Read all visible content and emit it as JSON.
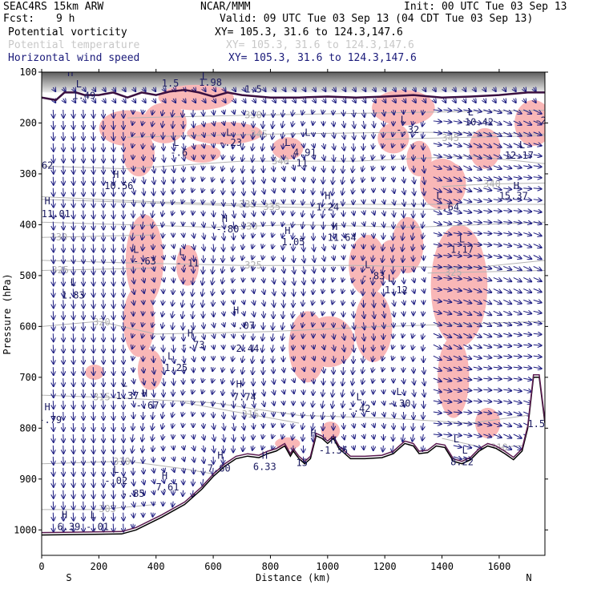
{
  "header": {
    "model": "SEAC4RS 15km ARW",
    "org": "NCAR/MMM",
    "init": "Init: 00 UTC Tue 03 Sep 13",
    "fcst_label": "Fcst:",
    "fcst_value": "9 h",
    "valid": "Valid: 09 UTC Tue 03 Sep 13 (04 CDT Tue 03 Sep 13)"
  },
  "legend": [
    {
      "name": "Potential vorticity",
      "xy": "XY= 105.3, 31.6 to 124.3,147.6",
      "color": "#000000"
    },
    {
      "name": "Potential temperature",
      "xy": "XY= 105.3, 31.6 to 124.3,147.6",
      "color": "#c8c8c8"
    },
    {
      "name": "Horizontal wind speed",
      "xy": "XY= 105.3, 31.6 to 124.3,147.6",
      "color": "#1a1a7a"
    }
  ],
  "chart_data": {
    "type": "cross-section",
    "xlabel": "Distance (km)",
    "ylabel": "Pressure (hPa)",
    "xlim": [
      0,
      1760
    ],
    "ylim": [
      1050,
      100
    ],
    "x_ticks": [
      0,
      200,
      400,
      600,
      800,
      1000,
      1200,
      1400,
      1600
    ],
    "y_ticks": [
      100,
      200,
      300,
      400,
      500,
      600,
      700,
      800,
      900,
      1000
    ],
    "end_labels": {
      "left": "S",
      "right": "N"
    },
    "terrain": [
      [
        0,
        1010
      ],
      [
        280,
        1008
      ],
      [
        330,
        1000
      ],
      [
        420,
        975
      ],
      [
        500,
        950
      ],
      [
        560,
        920
      ],
      [
        600,
        895
      ],
      [
        640,
        875
      ],
      [
        680,
        860
      ],
      [
        720,
        855
      ],
      [
        760,
        858
      ],
      [
        790,
        850
      ],
      [
        820,
        845
      ],
      [
        850,
        835
      ],
      [
        870,
        855
      ],
      [
        880,
        845
      ],
      [
        900,
        860
      ],
      [
        920,
        870
      ],
      [
        940,
        860
      ],
      [
        960,
        815
      ],
      [
        980,
        820
      ],
      [
        1000,
        830
      ],
      [
        1020,
        820
      ],
      [
        1040,
        840
      ],
      [
        1080,
        860
      ],
      [
        1130,
        860
      ],
      [
        1190,
        858
      ],
      [
        1230,
        850
      ],
      [
        1250,
        840
      ],
      [
        1270,
        830
      ],
      [
        1300,
        835
      ],
      [
        1320,
        850
      ],
      [
        1350,
        848
      ],
      [
        1380,
        835
      ],
      [
        1410,
        838
      ],
      [
        1440,
        865
      ],
      [
        1470,
        870
      ],
      [
        1500,
        862
      ],
      [
        1530,
        845
      ],
      [
        1560,
        835
      ],
      [
        1590,
        840
      ],
      [
        1620,
        850
      ],
      [
        1650,
        862
      ],
      [
        1680,
        845
      ],
      [
        1700,
        800
      ],
      [
        1720,
        700
      ],
      [
        1740,
        700
      ],
      [
        1760,
        790
      ]
    ],
    "isentropes": [
      {
        "value": "350",
        "pts": [
          [
            300,
            190
          ],
          [
            700,
            185
          ],
          [
            1200,
            180
          ],
          [
            1760,
            175
          ]
        ],
        "label_x": 740
      },
      {
        "value": "345",
        "pts": [
          [
            300,
            228
          ],
          [
            800,
            222
          ],
          [
            1300,
            218
          ],
          [
            1760,
            222
          ]
        ],
        "label_x": 760
      },
      {
        "value": "345",
        "pts": [
          [
            1200,
            232
          ],
          [
            1500,
            228
          ],
          [
            1760,
            225
          ]
        ],
        "label_x": 1430
      },
      {
        "value": "340",
        "pts": [
          [
            0,
            285
          ],
          [
            300,
            290
          ],
          [
            700,
            275
          ],
          [
            1100,
            275
          ],
          [
            1500,
            265
          ],
          [
            1760,
            280
          ]
        ],
        "label_x": 835
      },
      {
        "value": "340",
        "pts": [
          [
            1400,
            325
          ],
          [
            1560,
            320
          ],
          [
            1760,
            318
          ]
        ],
        "label_x": 1575
      },
      {
        "value": "335",
        "pts": [
          [
            0,
            345
          ],
          [
            400,
            355
          ],
          [
            700,
            360
          ],
          [
            1000,
            360
          ],
          [
            1400,
            360
          ],
          [
            1760,
            360
          ]
        ],
        "label_x": 720
      },
      {
        "value": "335",
        "pts": [
          [
            0,
            350
          ],
          [
            800,
            365
          ],
          [
            1400,
            370
          ]
        ],
        "label_x": 805
      },
      {
        "value": "330",
        "pts": [
          [
            0,
            395
          ],
          [
            300,
            400
          ],
          [
            600,
            405
          ],
          [
            900,
            400
          ],
          [
            1300,
            405
          ],
          [
            1760,
            395
          ]
        ],
        "label_x": 725
      },
      {
        "value": "330",
        "pts": [
          [
            0,
            425
          ],
          [
            400,
            420
          ]
        ],
        "label_x": 60
      },
      {
        "value": "325",
        "pts": [
          [
            0,
            470
          ],
          [
            300,
            475
          ],
          [
            700,
            480
          ],
          [
            1100,
            480
          ],
          [
            1500,
            485
          ],
          [
            1760,
            470
          ]
        ],
        "label_x": 740
      },
      {
        "value": "325",
        "pts": [
          [
            0,
            490
          ],
          [
            400,
            485
          ]
        ],
        "label_x": 65
      },
      {
        "value": "325",
        "pts": [
          [
            1350,
            495
          ],
          [
            1760,
            490
          ]
        ],
        "label_x": 1440
      },
      {
        "value": "320",
        "pts": [
          [
            0,
            600
          ],
          [
            200,
            590
          ],
          [
            400,
            615
          ],
          [
            800,
            610
          ],
          [
            1200,
            600
          ],
          [
            1760,
            590
          ]
        ],
        "label_x": 210
      },
      {
        "value": "315",
        "pts": [
          [
            0,
            735
          ],
          [
            250,
            740
          ],
          [
            600,
            750
          ],
          [
            900,
            775
          ],
          [
            1200,
            780
          ],
          [
            1500,
            790
          ],
          [
            1760,
            770
          ]
        ],
        "label_x": 210
      },
      {
        "value": "315",
        "pts": [
          [
            500,
            750
          ],
          [
            900,
            790
          ]
        ],
        "label_x": 730
      },
      {
        "value": "310",
        "pts": [
          [
            0,
            870
          ],
          [
            300,
            865
          ],
          [
            500,
            880
          ],
          [
            600,
            890
          ]
        ],
        "label_x": 280
      },
      {
        "value": "310",
        "pts": [
          [
            1400,
            820
          ],
          [
            1560,
            840
          ],
          [
            1760,
            830
          ]
        ],
        "label_x": 1600
      },
      {
        "value": "305",
        "pts": [
          [
            0,
            960
          ],
          [
            200,
            960
          ],
          [
            400,
            950
          ]
        ],
        "label_x": 230
      }
    ],
    "pv_labels": [
      {
        "t": "H",
        "x": 100,
        "p": 108
      },
      {
        "t": "1.49",
        "x": 148,
        "p": 153
      },
      {
        "t": "L",
        "x": 130,
        "p": 130
      },
      {
        "t": "1.5",
        "x": 450,
        "p": 128
      },
      {
        "t": "L",
        "x": 570,
        "p": 115
      },
      {
        "t": "1.98",
        "x": 590,
        "p": 127
      },
      {
        "t": "1.5",
        "x": 740,
        "p": 140
      },
      {
        "t": "-.6",
        "x": 480,
        "p": 265
      },
      {
        "t": "L",
        "x": 470,
        "p": 245
      },
      {
        "t": "-.23",
        "x": 660,
        "p": 245
      },
      {
        "t": "L",
        "x": 655,
        "p": 225
      },
      {
        "t": "L",
        "x": 860,
        "p": 245
      },
      {
        "t": "4.91",
        "x": 920,
        "p": 265
      },
      {
        "t": "-.11",
        "x": 890,
        "p": 285
      },
      {
        "t": "L",
        "x": 930,
        "p": 225
      },
      {
        "t": "62",
        "x": 20,
        "p": 290
      },
      {
        "t": "H",
        "x": 260,
        "p": 308
      },
      {
        "t": "10.56",
        "x": 270,
        "p": 330
      },
      {
        "t": "H",
        "x": 20,
        "p": 360
      },
      {
        "t": "11.01",
        "x": 50,
        "p": 385
      },
      {
        "t": "L",
        "x": 1265,
        "p": 200
      },
      {
        "t": "-.32",
        "x": 1280,
        "p": 220
      },
      {
        "t": "L",
        "x": 1500,
        "p": 185
      },
      {
        "t": "10.42",
        "x": 1530,
        "p": 205
      },
      {
        "t": "L",
        "x": 1680,
        "p": 250
      },
      {
        "t": "12.17",
        "x": 1670,
        "p": 270
      },
      {
        "t": "H",
        "x": 1660,
        "p": 330
      },
      {
        "t": "15.37",
        "x": 1650,
        "p": 350
      },
      {
        "t": "H",
        "x": 1000,
        "p": 350
      },
      {
        "t": "1.24",
        "x": 1000,
        "p": 372
      },
      {
        "t": "L",
        "x": 1390,
        "p": 350
      },
      {
        "t": "-.64",
        "x": 1420,
        "p": 372
      },
      {
        "t": "H",
        "x": 640,
        "p": 395
      },
      {
        "t": "-.80",
        "x": 650,
        "p": 415
      },
      {
        "t": "H",
        "x": 860,
        "p": 418
      },
      {
        "t": "1.05",
        "x": 880,
        "p": 440
      },
      {
        "t": "H",
        "x": 1025,
        "p": 410
      },
      {
        "t": "11.64",
        "x": 1050,
        "p": 432
      },
      {
        "t": "L",
        "x": 1470,
        "p": 435
      },
      {
        "t": "1.17",
        "x": 1470,
        "p": 455
      },
      {
        "t": "L",
        "x": 330,
        "p": 455
      },
      {
        "t": "-.63",
        "x": 360,
        "p": 478
      },
      {
        "t": "L",
        "x": 490,
        "p": 460
      },
      {
        "t": "-.11",
        "x": 510,
        "p": 482
      },
      {
        "t": "L",
        "x": 1140,
        "p": 485
      },
      {
        "t": "-.83",
        "x": 1160,
        "p": 507
      },
      {
        "t": "1.12",
        "x": 1240,
        "p": 535
      },
      {
        "t": "L",
        "x": 1220,
        "p": 512
      },
      {
        "t": "L",
        "x": 110,
        "p": 520
      },
      {
        "t": "1.83",
        "x": 110,
        "p": 545
      },
      {
        "t": "H",
        "x": 680,
        "p": 575
      },
      {
        "t": "-.07",
        "x": 705,
        "p": 605
      },
      {
        "t": "H",
        "x": 520,
        "p": 620
      },
      {
        "t": "-.73",
        "x": 530,
        "p": 643
      },
      {
        "t": "2.44",
        "x": 720,
        "p": 650
      },
      {
        "t": "L",
        "x": 450,
        "p": 665
      },
      {
        "t": "1.25",
        "x": 470,
        "p": 688
      },
      {
        "t": "L",
        "x": 290,
        "p": 718
      },
      {
        "t": "1.37",
        "x": 300,
        "p": 743
      },
      {
        "t": "H",
        "x": 360,
        "p": 738
      },
      {
        "t": "-.67",
        "x": 370,
        "p": 762
      },
      {
        "t": "H",
        "x": 690,
        "p": 720
      },
      {
        "t": "7.74",
        "x": 710,
        "p": 745
      },
      {
        "t": "L",
        "x": 1110,
        "p": 745
      },
      {
        "t": "-.42",
        "x": 1110,
        "p": 768
      },
      {
        "t": "L",
        "x": 1250,
        "p": 735
      },
      {
        "t": "-.30",
        "x": 1250,
        "p": 758
      },
      {
        "t": "H",
        "x": 20,
        "p": 765
      },
      {
        "t": "-.79",
        "x": 30,
        "p": 790
      },
      {
        "t": "H",
        "x": 950,
        "p": 817
      },
      {
        "t": "H",
        "x": 1020,
        "p": 830
      },
      {
        "t": "-1.36",
        "x": 1020,
        "p": 850
      },
      {
        "t": "L",
        "x": 1450,
        "p": 828
      },
      {
        "t": "H",
        "x": 625,
        "p": 860
      },
      {
        "t": "7.60",
        "x": 620,
        "p": 885
      },
      {
        "t": "H",
        "x": 780,
        "p": 860
      },
      {
        "t": "6.33",
        "x": 780,
        "p": 882
      },
      {
        "t": "15",
        "x": 910,
        "p": 874
      },
      {
        "t": "L",
        "x": 1480,
        "p": 850
      },
      {
        "t": "8.22",
        "x": 1470,
        "p": 873
      },
      {
        "t": "1.5",
        "x": 1730,
        "p": 798
      },
      {
        "t": "L",
        "x": 260,
        "p": 888
      },
      {
        "t": "-.02",
        "x": 260,
        "p": 910
      },
      {
        "t": "H",
        "x": 430,
        "p": 900
      },
      {
        "t": "7.61",
        "x": 440,
        "p": 922
      },
      {
        "t": "-.85",
        "x": 320,
        "p": 935
      },
      {
        "t": "H",
        "x": 80,
        "p": 977
      },
      {
        "t": "L",
        "x": 180,
        "p": 977
      },
      {
        "t": "6.39",
        "x": 95,
        "p": 1000
      },
      {
        "t": "-.01",
        "x": 195,
        "p": 1000
      },
      {
        "t": "-2",
        "x": 1745,
        "p": 202
      }
    ]
  }
}
